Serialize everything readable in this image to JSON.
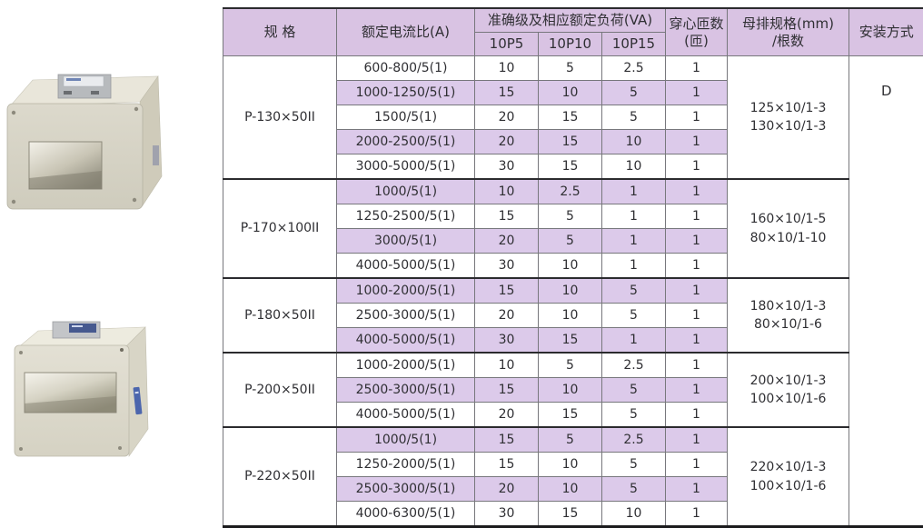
{
  "colors": {
    "header_bg": "#d9c3e3",
    "row_stripe_bg": "#dccaea",
    "grid_line": "#77777c",
    "heavy_line": "#2b2b2e",
    "text": "#2f2f33"
  },
  "table": {
    "headers": {
      "spec": "规 格",
      "ratio": "额定电流比(A)",
      "load_group": "准确级及相应额定负荷(VA)",
      "p5": "10P5",
      "p10": "10P10",
      "p15": "10P15",
      "turns": "穿心匝数(匝)",
      "busbar": "母排规格(mm)\n/根数",
      "install": "安装方式"
    },
    "install_value": "D",
    "groups": [
      {
        "spec": "P-130×50II",
        "busbar": "125×10/1-3\n130×10/1-3",
        "rows": [
          {
            "ratio": "600-800/5(1)",
            "p5": "10",
            "p10": "5",
            "p15": "2.5",
            "turns": "1",
            "shaded": false
          },
          {
            "ratio": "1000-1250/5(1)",
            "p5": "15",
            "p10": "10",
            "p15": "5",
            "turns": "1",
            "shaded": true
          },
          {
            "ratio": "1500/5(1)",
            "p5": "20",
            "p10": "15",
            "p15": "5",
            "turns": "1",
            "shaded": false
          },
          {
            "ratio": "2000-2500/5(1)",
            "p5": "20",
            "p10": "15",
            "p15": "10",
            "turns": "1",
            "shaded": true
          },
          {
            "ratio": "3000-5000/5(1)",
            "p5": "30",
            "p10": "15",
            "p15": "10",
            "turns": "1",
            "shaded": false
          }
        ]
      },
      {
        "spec": "P-170×100II",
        "busbar": "160×10/1-5\n80×10/1-10",
        "rows": [
          {
            "ratio": "1000/5(1)",
            "p5": "10",
            "p10": "2.5",
            "p15": "1",
            "turns": "1",
            "shaded": true
          },
          {
            "ratio": "1250-2500/5(1)",
            "p5": "15",
            "p10": "5",
            "p15": "1",
            "turns": "1",
            "shaded": false
          },
          {
            "ratio": "3000/5(1)",
            "p5": "20",
            "p10": "5",
            "p15": "1",
            "turns": "1",
            "shaded": true
          },
          {
            "ratio": "4000-5000/5(1)",
            "p5": "30",
            "p10": "10",
            "p15": "1",
            "turns": "1",
            "shaded": false
          }
        ]
      },
      {
        "spec": "P-180×50II",
        "busbar": "180×10/1-3\n80×10/1-6",
        "rows": [
          {
            "ratio": "1000-2000/5(1)",
            "p5": "15",
            "p10": "10",
            "p15": "5",
            "turns": "1",
            "shaded": true
          },
          {
            "ratio": "2500-3000/5(1)",
            "p5": "20",
            "p10": "10",
            "p15": "5",
            "turns": "1",
            "shaded": false
          },
          {
            "ratio": "4000-5000/5(1)",
            "p5": "30",
            "p10": "15",
            "p15": "1",
            "turns": "1",
            "shaded": true
          }
        ]
      },
      {
        "spec": "P-200×50II",
        "busbar": "200×10/1-3\n100×10/1-6",
        "rows": [
          {
            "ratio": "1000-2000/5(1)",
            "p5": "10",
            "p10": "5",
            "p15": "2.5",
            "turns": "1",
            "shaded": false
          },
          {
            "ratio": "2500-3000/5(1)",
            "p5": "15",
            "p10": "10",
            "p15": "5",
            "turns": "1",
            "shaded": true
          },
          {
            "ratio": "4000-5000/5(1)",
            "p5": "20",
            "p10": "15",
            "p15": "5",
            "turns": "1",
            "shaded": false
          }
        ]
      },
      {
        "spec": "P-220×50II",
        "busbar": "220×10/1-3\n100×10/1-6",
        "rows": [
          {
            "ratio": "1000/5(1)",
            "p5": "15",
            "p10": "5",
            "p15": "2.5",
            "turns": "1",
            "shaded": true
          },
          {
            "ratio": "1250-2000/5(1)",
            "p5": "15",
            "p10": "10",
            "p15": "5",
            "turns": "1",
            "shaded": false
          },
          {
            "ratio": "2500-3000/5(1)",
            "p5": "20",
            "p10": "10",
            "p15": "5",
            "turns": "1",
            "shaded": true
          },
          {
            "ratio": "4000-6300/5(1)",
            "p5": "30",
            "p10": "15",
            "p15": "10",
            "turns": "1",
            "shaded": false
          }
        ]
      }
    ]
  }
}
